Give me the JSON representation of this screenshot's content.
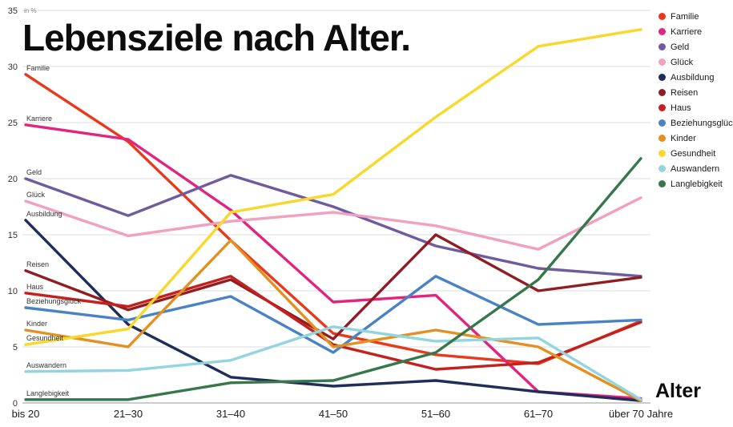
{
  "chart_data": {
    "type": "line",
    "title": "Lebensziele nach Alter.",
    "ylabel": "in %",
    "xlabel": "Alter",
    "ylim": [
      0,
      35
    ],
    "yticks": [
      0,
      5,
      10,
      15,
      20,
      25,
      30,
      35
    ],
    "grid": "horizontal",
    "legend_position": "top-right",
    "categories": [
      "bis 20",
      "21–30",
      "31–40",
      "41–50",
      "51–60",
      "61–70",
      "über 70 Jahre"
    ],
    "series": [
      {
        "name": "Familie",
        "color": "#e8391d",
        "values": [
          29.3,
          23.3,
          14.5,
          6.2,
          4.3,
          3.5,
          7.3
        ]
      },
      {
        "name": "Karriere",
        "color": "#e2247f",
        "values": [
          24.8,
          23.5,
          17.2,
          9.0,
          9.6,
          1.0,
          0.4
        ]
      },
      {
        "name": "Geld",
        "color": "#6f5b9e",
        "values": [
          20.0,
          16.7,
          20.3,
          17.5,
          14.0,
          12.0,
          11.3
        ]
      },
      {
        "name": "Glück",
        "color": "#f2a0c0",
        "values": [
          18.0,
          14.9,
          16.2,
          17.0,
          15.8,
          13.7,
          18.3
        ]
      },
      {
        "name": "Ausbildung",
        "color": "#1f2d5a",
        "values": [
          16.3,
          7.0,
          2.3,
          1.5,
          2.0,
          1.0,
          0.2
        ]
      },
      {
        "name": "Reisen",
        "color": "#8f1d22",
        "values": [
          11.8,
          8.3,
          11.0,
          5.7,
          15.0,
          10.0,
          11.2
        ]
      },
      {
        "name": "Haus",
        "color": "#c6201e",
        "values": [
          9.8,
          8.6,
          11.3,
          5.2,
          3.0,
          3.6,
          7.2
        ]
      },
      {
        "name": "Beziehungsglück",
        "color": "#4a82c3",
        "values": [
          8.5,
          7.4,
          9.5,
          4.5,
          11.3,
          7.0,
          7.4
        ]
      },
      {
        "name": "Kinder",
        "color": "#e39020",
        "values": [
          6.5,
          5.0,
          14.5,
          5.0,
          6.5,
          5.0,
          0.2
        ]
      },
      {
        "name": "Gesundheit",
        "color": "#f8d82a",
        "values": [
          5.2,
          6.6,
          17.0,
          18.6,
          25.5,
          31.8,
          33.3
        ]
      },
      {
        "name": "Auswandern",
        "color": "#93d5de",
        "values": [
          2.8,
          2.9,
          3.8,
          6.8,
          5.5,
          5.8,
          0.3
        ]
      },
      {
        "name": "Langlebigkeit",
        "color": "#37774c",
        "values": [
          0.3,
          0.3,
          1.8,
          2.0,
          4.5,
          11.0,
          21.8
        ]
      }
    ]
  }
}
